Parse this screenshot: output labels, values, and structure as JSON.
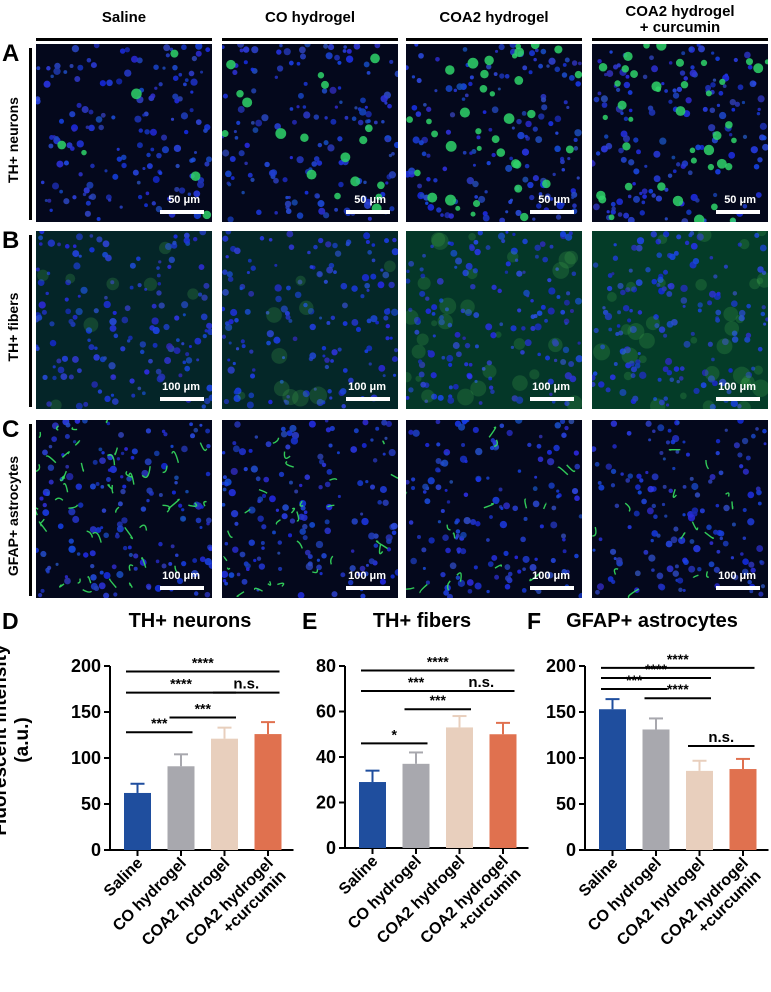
{
  "columns": [
    "Saline",
    "CO hydrogel",
    "COA2 hydrogel",
    "COA2 hydrogel\n+ curcumin"
  ],
  "rows": [
    {
      "letter": "A",
      "label": "TH+ neurons",
      "scalebar": "50 μm",
      "tint": "#2fd46a"
    },
    {
      "letter": "B",
      "label": "TH+ fibers",
      "scalebar": "100 μm",
      "tint": "#3fa84a"
    },
    {
      "letter": "C",
      "label": "GFAP+ astrocytes",
      "scalebar": "100 μm",
      "tint": "#36e060"
    }
  ],
  "y_axis_label": "Fluorescent intensity\n(a.u.)",
  "chart_data": [
    {
      "type": "bar",
      "panel_letter": "D",
      "title": "TH+ neurons",
      "categories": [
        "Saline",
        "CO hydrogel",
        "COA2 hydrogel",
        "COA2 hydrogel\n+curcumin"
      ],
      "values": [
        62,
        91,
        121,
        126
      ],
      "errors": [
        10,
        13,
        12,
        13
      ],
      "colors": [
        "#1f4e9e",
        "#a8a8ae",
        "#e8cfbd",
        "#e0714f"
      ],
      "ylim": [
        0,
        200
      ],
      "yticks": [
        0,
        50,
        100,
        150,
        200
      ],
      "significance": [
        {
          "from": 0,
          "to": 1,
          "label": "***",
          "y": 128
        },
        {
          "from": 1,
          "to": 2,
          "label": "***",
          "y": 144
        },
        {
          "from": 0,
          "to": 2,
          "label": "****",
          "y": 171
        },
        {
          "from": 2,
          "to": 3,
          "label": "n.s.",
          "y": 171
        },
        {
          "from": 0,
          "to": 3,
          "label": "****",
          "y": 194
        }
      ]
    },
    {
      "type": "bar",
      "panel_letter": "E",
      "title": "TH+ fibers",
      "categories": [
        "Saline",
        "CO hydrogel",
        "COA2 hydrogel",
        "COA2 hydrogel\n+curcumin"
      ],
      "values": [
        29,
        37,
        53,
        50
      ],
      "errors": [
        5,
        5,
        5,
        5
      ],
      "colors": [
        "#1f4e9e",
        "#a8a8ae",
        "#e8cfbd",
        "#e0714f"
      ],
      "ylim": [
        0,
        80
      ],
      "yticks": [
        0,
        20,
        40,
        60,
        80
      ],
      "significance": [
        {
          "from": 0,
          "to": 1,
          "label": "*",
          "y": 46
        },
        {
          "from": 1,
          "to": 2,
          "label": "***",
          "y": 61
        },
        {
          "from": 0,
          "to": 2,
          "label": "***",
          "y": 69
        },
        {
          "from": 2,
          "to": 3,
          "label": "n.s.",
          "y": 69
        },
        {
          "from": 0,
          "to": 3,
          "label": "****",
          "y": 78
        }
      ]
    },
    {
      "type": "bar",
      "panel_letter": "F",
      "title": "GFAP+ astrocytes",
      "categories": [
        "Saline",
        "CO hydrogel",
        "COA2 hydrogel",
        "COA2 hydrogel\n+curcumin"
      ],
      "values": [
        153,
        131,
        86,
        88
      ],
      "errors": [
        11,
        12,
        11,
        11
      ],
      "colors": [
        "#1f4e9e",
        "#a8a8ae",
        "#e8cfbd",
        "#e0714f"
      ],
      "ylim": [
        0,
        200
      ],
      "yticks": [
        0,
        50,
        100,
        150,
        200
      ],
      "significance": [
        {
          "from": 0,
          "to": 1,
          "label": "***",
          "y": 175
        },
        {
          "from": 1,
          "to": 2,
          "label": "****",
          "y": 165
        },
        {
          "from": 0,
          "to": 2,
          "label": "****",
          "y": 187
        },
        {
          "from": 2,
          "to": 3,
          "label": "n.s.",
          "y": 113
        },
        {
          "from": 0,
          "to": 3,
          "label": "****",
          "y": 198
        }
      ]
    }
  ]
}
